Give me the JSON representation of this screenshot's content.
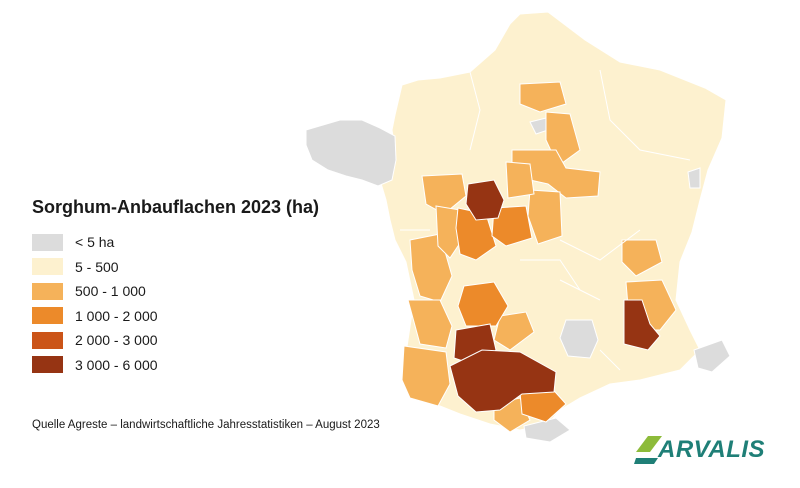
{
  "title": "Sorghum-Anbauflachen 2023 (ha)",
  "legend": [
    {
      "label": "< 5 ha",
      "color": "#dcdcdc"
    },
    {
      "label": "5 - 500",
      "color": "#fdf1cf"
    },
    {
      "label": "500 - 1 000",
      "color": "#f5b25a"
    },
    {
      "label": "1 000 - 2 000",
      "color": "#ec8a2a"
    },
    {
      "label": "2 000 - 3 000",
      "color": "#cb5418"
    },
    {
      "label": "3 000 - 6 000",
      "color": "#963413"
    }
  ],
  "source": "Quelle Agreste – landwirtschaftliche Jahresstatistiken – August 2023",
  "logo_text": "ARVALIS",
  "colors": {
    "border": "#ffffff",
    "logo_teal": "#1f7f77",
    "logo_green": "#8dbb3a"
  }
}
